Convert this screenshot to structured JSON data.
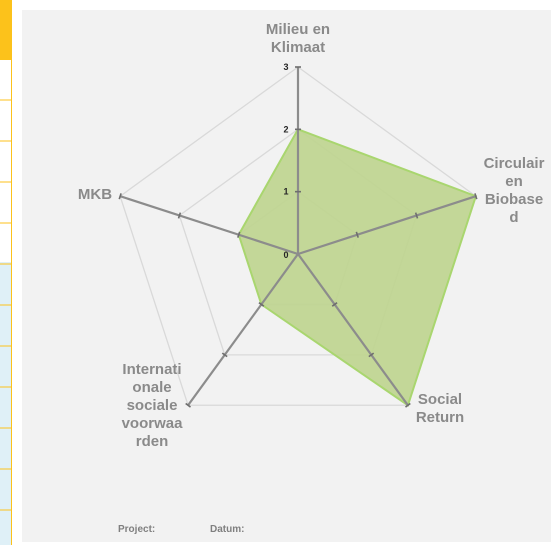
{
  "chart_data": {
    "type": "radar",
    "axes": [
      {
        "label": "Milieu en\nKlimaat",
        "value": 2
      },
      {
        "label": "Circulair\nen\nBiobase\nd",
        "value": 3
      },
      {
        "label": "Social\nReturn",
        "value": 3
      },
      {
        "label": "Internati\nonale\nsociale\nvoorwaa\nrden",
        "value": 1
      },
      {
        "label": "MKB",
        "value": 1
      }
    ],
    "range": [
      0,
      3
    ],
    "ticks": [
      "0",
      "1",
      "2",
      "3"
    ],
    "grid": true,
    "fill_color": "#bed48e",
    "fill_stroke": "#a9d66f",
    "axis_color": "#8c8c8c",
    "grid_color": "#d9d9d9"
  },
  "footer": {
    "project_label": "Project:",
    "datum_label": "Datum:"
  },
  "sheet": {
    "header_color": "#fcc21b",
    "row_border_color": "#fcc21b",
    "highlight_fill": "#dff0f7"
  }
}
